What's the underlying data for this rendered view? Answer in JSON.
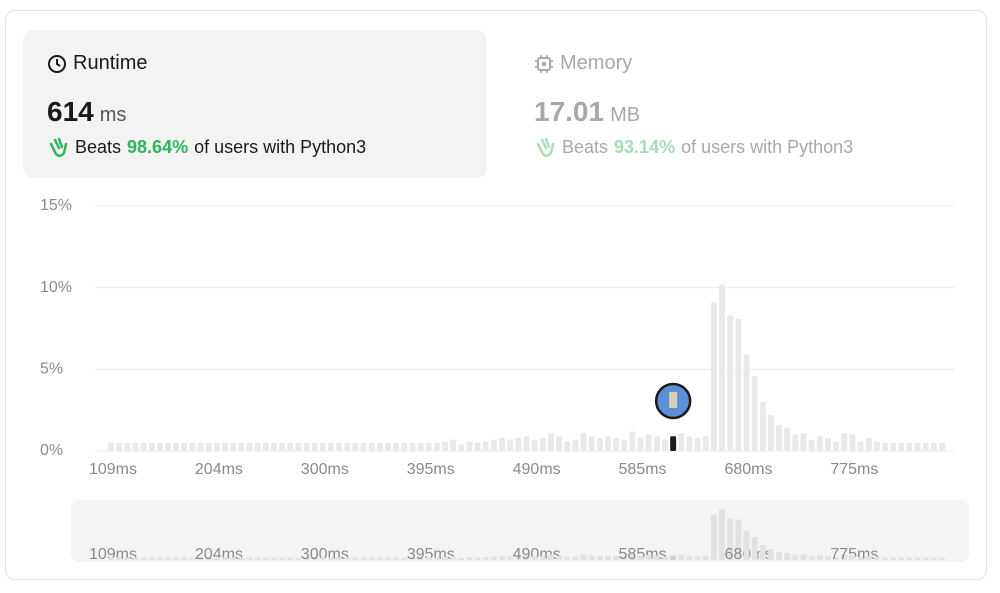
{
  "runtime": {
    "title": "Runtime",
    "value": "614",
    "unit": "ms",
    "beats": "Beats",
    "percent": "98.64%",
    "suffix": "of users with Python3"
  },
  "memory": {
    "title": "Memory",
    "value": "17.01",
    "unit": "MB",
    "beats": "Beats",
    "percent": "93.14%",
    "suffix": "of users with Python3"
  },
  "chart_data": {
    "type": "bar",
    "categories": [
      "109ms",
      null,
      null,
      null,
      null,
      null,
      null,
      null,
      null,
      null,
      null,
      null,
      null,
      "204ms",
      null,
      null,
      null,
      null,
      null,
      null,
      null,
      null,
      null,
      null,
      null,
      null,
      "300ms",
      null,
      null,
      null,
      null,
      null,
      null,
      null,
      null,
      null,
      null,
      null,
      null,
      "395ms",
      null,
      null,
      null,
      null,
      null,
      null,
      null,
      null,
      null,
      null,
      null,
      null,
      "490ms",
      null,
      null,
      null,
      null,
      null,
      null,
      null,
      null,
      null,
      null,
      null,
      null,
      "585ms",
      null,
      null,
      null,
      null,
      null,
      null,
      null,
      null,
      null,
      null,
      null,
      null,
      "680ms",
      null,
      null,
      null,
      null,
      null,
      null,
      null,
      null,
      null,
      null,
      null,
      null,
      "775ms",
      null,
      null,
      null,
      null,
      null,
      null,
      null,
      null,
      null,
      null,
      null
    ],
    "values": [
      0.5,
      0.5,
      0.5,
      0.5,
      0.5,
      0.5,
      0.5,
      0.5,
      0.5,
      0.5,
      0.5,
      0.5,
      0.5,
      0.5,
      0.5,
      0.5,
      0.5,
      0.5,
      0.5,
      0.5,
      0.5,
      0.5,
      0.5,
      0.5,
      0.5,
      0.5,
      0.5,
      0.5,
      0.5,
      0.5,
      0.5,
      0.5,
      0.5,
      0.5,
      0.5,
      0.5,
      0.5,
      0.5,
      0.5,
      0.5,
      0.5,
      0.6,
      0.7,
      0.4,
      0.6,
      0.5,
      0.6,
      0.7,
      0.8,
      0.7,
      0.8,
      0.9,
      0.7,
      0.8,
      1.1,
      0.9,
      0.6,
      0.7,
      1.1,
      0.9,
      0.8,
      0.9,
      0.8,
      0.7,
      1.2,
      0.8,
      1.0,
      0.9,
      0.7,
      0.9,
      1.1,
      0.9,
      0.8,
      0.9,
      9.1,
      10.2,
      8.3,
      8.1,
      5.9,
      4.6,
      3.0,
      2.2,
      1.6,
      1.4,
      1.0,
      1.1,
      0.7,
      0.9,
      0.8,
      0.6,
      1.1,
      1.0,
      0.6,
      0.8,
      0.6,
      0.5,
      0.5,
      0.5,
      0.5,
      0.5,
      0.5,
      0.5,
      0.5
    ],
    "color": "#e9e9e9",
    "highlight_index": 69,
    "highlight_color": "#1a1a1a",
    "ylim": [
      0,
      15
    ],
    "yticks": [
      {
        "value": 0,
        "label": "0%"
      },
      {
        "value": 5,
        "label": "5%"
      },
      {
        "value": 10,
        "label": "10%"
      },
      {
        "value": 15,
        "label": "15%"
      }
    ],
    "grid": true
  }
}
